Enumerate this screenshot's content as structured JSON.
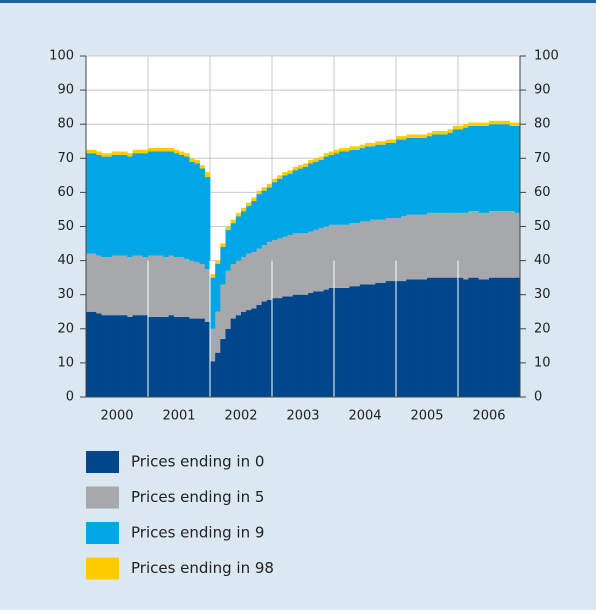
{
  "chart_data": {
    "type": "stacked_bar",
    "categories": [
      null,
      null,
      null,
      null,
      null,
      null,
      null,
      null,
      null,
      null,
      null,
      null,
      null,
      null,
      null,
      null,
      null,
      null,
      null,
      null,
      null,
      null,
      null,
      null,
      null,
      null,
      null,
      null,
      null,
      null,
      null,
      null,
      null,
      null,
      null,
      null,
      null,
      null,
      null,
      null,
      null,
      null,
      null,
      null,
      null,
      null,
      null,
      null,
      null,
      null,
      null,
      null,
      null,
      null,
      null,
      null,
      null,
      null,
      null,
      null,
      null,
      null,
      null,
      null,
      null,
      null,
      null,
      null,
      null,
      null,
      null,
      null,
      null,
      null,
      null,
      null,
      null,
      null,
      null,
      null,
      null,
      null,
      null,
      null
    ],
    "year_labels": [
      "2000",
      "2001",
      "2002",
      "2003",
      "2004",
      "2005",
      "2006"
    ],
    "series": [
      {
        "name": "Prices ending in 0",
        "color": "#00468b",
        "values": [
          25,
          25,
          24.5,
          24,
          24,
          24,
          24,
          24,
          23.5,
          24,
          24,
          24,
          23.5,
          23.5,
          23.5,
          23.5,
          24,
          23.5,
          23.5,
          23.5,
          23,
          23,
          23,
          22,
          10.5,
          13,
          17,
          20,
          23,
          24,
          25,
          25.5,
          26,
          27,
          28,
          28.5,
          29,
          29,
          29.5,
          29.5,
          30,
          30,
          30,
          30.5,
          31,
          31,
          31.5,
          32,
          32,
          32,
          32,
          32.5,
          32.5,
          33,
          33,
          33,
          33.5,
          33.5,
          34,
          34,
          34,
          34,
          34.5,
          34.5,
          34.5,
          34.5,
          35,
          35,
          35,
          35,
          35,
          35,
          35,
          34.5,
          35,
          35,
          34.5,
          34.5,
          35,
          35,
          35,
          35,
          35,
          35
        ]
      },
      {
        "name": "Prices ending in 5",
        "color": "#a6a8ab",
        "values": [
          17,
          17,
          17,
          17,
          17,
          17.5,
          17.5,
          17.5,
          17.5,
          17.5,
          17.5,
          17,
          18,
          18,
          18,
          17.5,
          17.5,
          17.5,
          17.5,
          17,
          17,
          16.5,
          16,
          15.5,
          9.5,
          12,
          16,
          17,
          16,
          16,
          16,
          16.5,
          16.5,
          16.5,
          16.5,
          17,
          17,
          17.5,
          17.5,
          18,
          18,
          18,
          18,
          18,
          18,
          18.5,
          18.5,
          18.5,
          18.5,
          18.5,
          18.5,
          18.5,
          18.5,
          18.5,
          18.5,
          19,
          18.5,
          18.5,
          18.5,
          18.5,
          18.5,
          19,
          19,
          19,
          19,
          19,
          19,
          19,
          19,
          19,
          19,
          19,
          19,
          19.5,
          19.5,
          19.5,
          19.5,
          19.5,
          19.5,
          19.5,
          19.5,
          19.5,
          19.5,
          19
        ]
      },
      {
        "name": "Prices ending in 9",
        "color": "#00a6e6",
        "values": [
          29.5,
          29.5,
          29.5,
          29.5,
          29.5,
          29.5,
          29.5,
          29.5,
          29.5,
          30,
          30,
          30.5,
          30.5,
          30.5,
          30.5,
          31,
          30.5,
          30.5,
          30,
          30,
          29,
          29,
          28,
          27,
          15,
          14,
          11,
          12,
          12,
          13,
          13.5,
          14,
          15,
          16,
          16,
          16,
          17,
          17.5,
          18,
          18,
          18.5,
          19,
          19.5,
          20,
          20,
          20,
          20.5,
          20.5,
          21,
          21.5,
          21.5,
          21.5,
          21.5,
          21.5,
          22,
          21.5,
          22,
          22,
          22,
          22,
          23,
          22.5,
          22.5,
          22.5,
          22.5,
          22.5,
          22.5,
          23,
          23,
          23,
          23.5,
          24.5,
          24.5,
          25,
          25,
          25,
          25.5,
          25.5,
          25.5,
          25.5,
          25.5,
          25.5,
          25,
          25.5
        ]
      },
      {
        "name": "Prices ending in 98",
        "color": "#ffcc00",
        "values": [
          1,
          1,
          1,
          1,
          1,
          1,
          1,
          1,
          1,
          1,
          1,
          1,
          1,
          1,
          1,
          1,
          1,
          1,
          1,
          1,
          1,
          1,
          1,
          1.5,
          1,
          1,
          1,
          1,
          1,
          1,
          1,
          1,
          1,
          1,
          1,
          1,
          1,
          1,
          1,
          1,
          1,
          1,
          1,
          1,
          1,
          1,
          1,
          1,
          1,
          1,
          1,
          1,
          1,
          1,
          1,
          1,
          1,
          1,
          1,
          1,
          1,
          1,
          1,
          1,
          1,
          1,
          1,
          1,
          1,
          1,
          1,
          1,
          1,
          1,
          1,
          1,
          1,
          1,
          1,
          1,
          1,
          1,
          1,
          1
        ]
      }
    ],
    "ylim": [
      0,
      100
    ],
    "yticks": [
      0,
      10,
      20,
      30,
      40,
      50,
      60,
      70,
      80,
      90,
      100
    ],
    "grid": true
  }
}
